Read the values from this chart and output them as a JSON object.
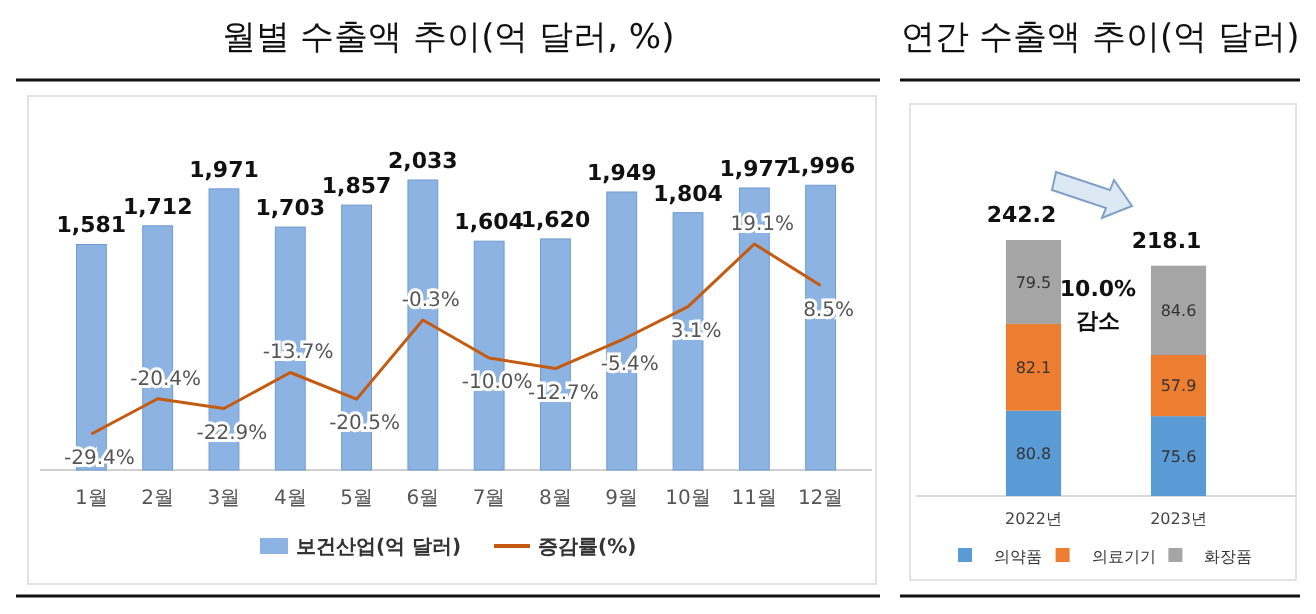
{
  "chart_data": [
    {
      "type": "bar",
      "title": "월별 수출액 추이(억 달러, %)",
      "categories": [
        "1월",
        "2월",
        "3월",
        "4월",
        "5월",
        "6월",
        "7월",
        "8월",
        "9월",
        "10월",
        "11월",
        "12월"
      ],
      "series": [
        {
          "name": "보건산업(억 달러)",
          "type": "bar",
          "color": "#8db3e2",
          "values": [
            1581,
            1712,
            1971,
            1703,
            1857,
            2033,
            1604,
            1620,
            1949,
            1804,
            1977,
            1996
          ],
          "value_labels": [
            "1,581",
            "1,712",
            "1,971",
            "1,703",
            "1,857",
            "2,033",
            "1,604",
            "1,620",
            "1,949",
            "1,804",
            "1,977",
            "1,996"
          ]
        },
        {
          "name": "증감률(%)",
          "type": "line",
          "axis": "y2",
          "color": "#c55a11",
          "values": [
            -29.4,
            -20.4,
            -22.9,
            -13.7,
            -20.5,
            -0.3,
            -10.0,
            -12.7,
            -5.4,
            3.1,
            19.1,
            8.5
          ],
          "value_labels": [
            "-29.4%",
            "-20.4%",
            "-22.9%",
            "-13.7%",
            "-20.5%",
            "-0.3%",
            "-10.0%",
            "-12.7%",
            "-5.4%",
            "3.1%",
            "19.1%",
            "8.5%"
          ]
        }
      ],
      "legend": "bottom",
      "tick_labels": "x"
    },
    {
      "type": "bar",
      "title": "연간 수출액 추이(억 달러)",
      "categories": [
        "2022년",
        "2023년"
      ],
      "stacked": true,
      "series": [
        {
          "name": "의약품",
          "color": "#5b9bd5",
          "values": [
            80.8,
            75.6
          ]
        },
        {
          "name": "의료기기",
          "color": "#ed7d31",
          "values": [
            82.1,
            57.9
          ]
        },
        {
          "name": "화장품",
          "color": "#a5a5a5",
          "values": [
            79.5,
            84.6
          ]
        }
      ],
      "totals": [
        "242.2",
        "218.1"
      ],
      "annotations": [
        "10.0%\n감소"
      ],
      "data_labels": true,
      "legend": "bottom",
      "tick_labels": "x"
    }
  ]
}
